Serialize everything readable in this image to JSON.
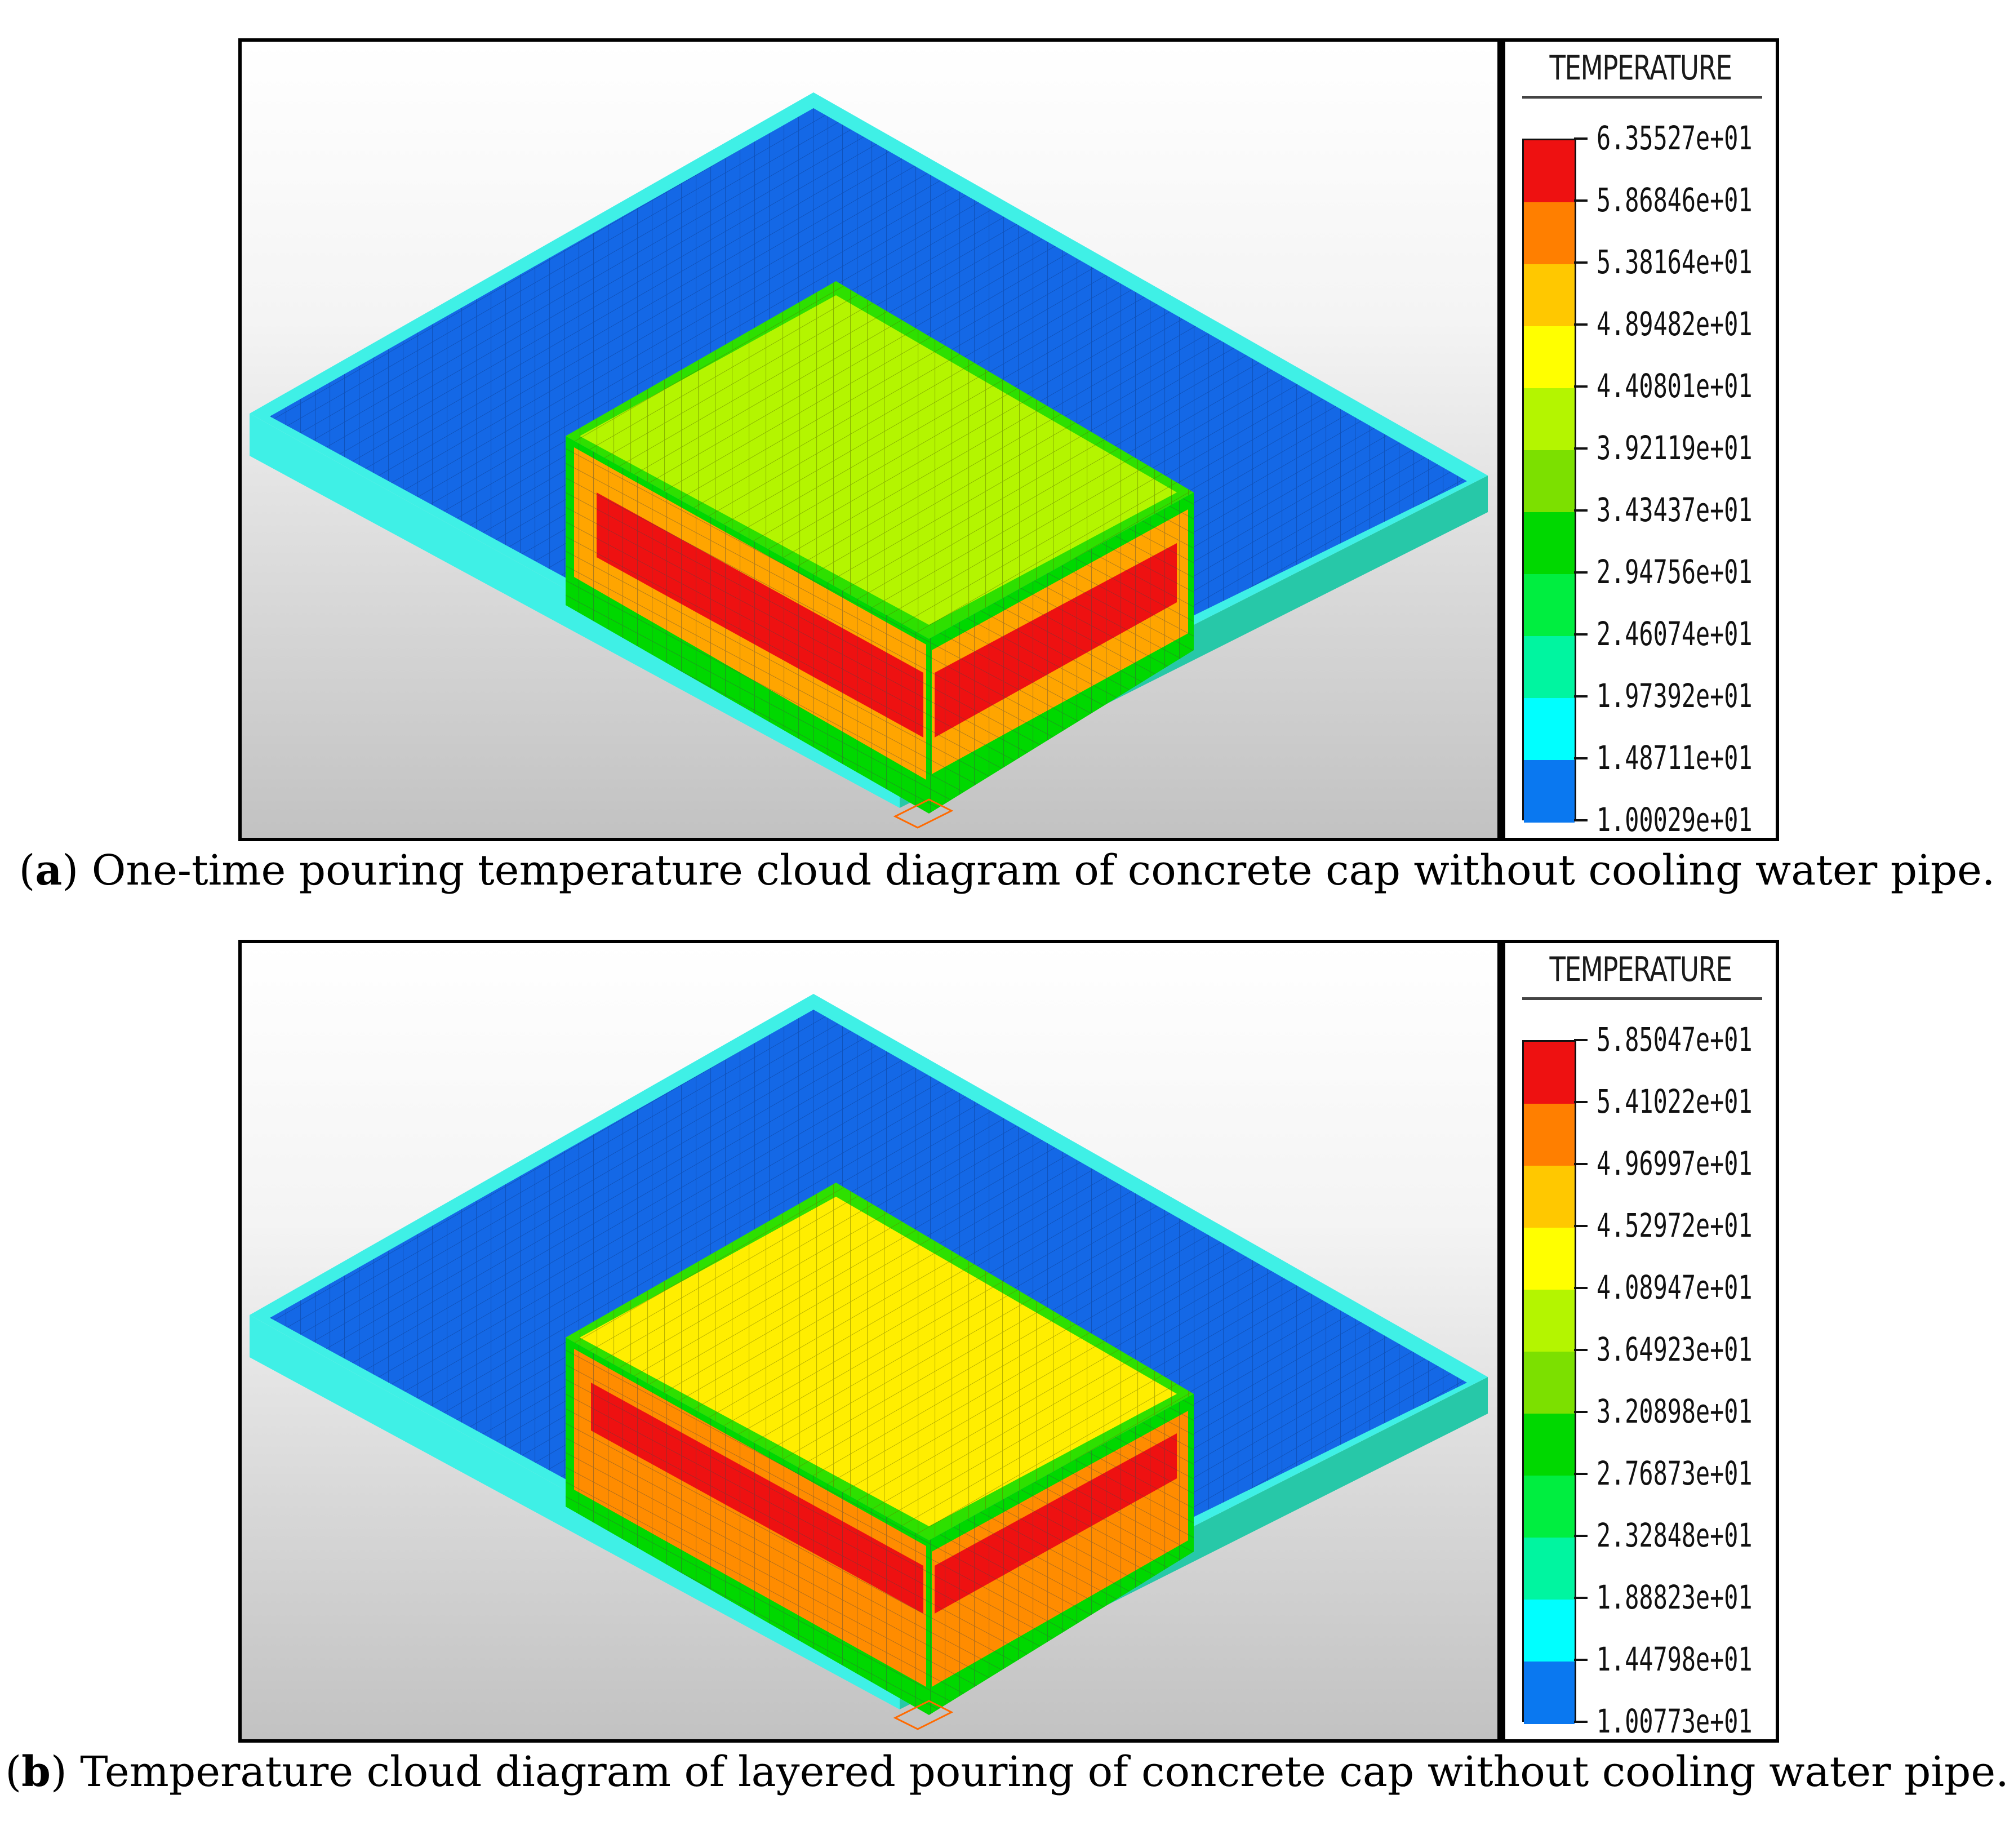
{
  "panels": [
    {
      "legend_title": "TEMPERATURE",
      "legend_values": [
        "6.35527e+01",
        "5.86846e+01",
        "5.38164e+01",
        "4.89482e+01",
        "4.40801e+01",
        "3.92119e+01",
        "3.43437e+01",
        "2.94756e+01",
        "2.46074e+01",
        "1.97392e+01",
        "1.48711e+01",
        "1.00029e+01"
      ],
      "caption_open": "(",
      "caption_tag": "a",
      "caption_text": ") One-time pouring temperature cloud diagram of concrete cap without cooling water pipe."
    },
    {
      "legend_title": "TEMPERATURE",
      "legend_values": [
        "5.85047e+01",
        "5.41022e+01",
        "4.96997e+01",
        "4.52972e+01",
        "4.08947e+01",
        "3.64923e+01",
        "3.20898e+01",
        "2.76873e+01",
        "2.32848e+01",
        "1.88823e+01",
        "1.44798e+01",
        "1.00773e+01"
      ],
      "caption_open": "(",
      "caption_tag": "b",
      "caption_text": ") Temperature cloud diagram of layered pouring of concrete cap without cooling water pipe."
    }
  ],
  "legend_colors": [
    "#ee1111",
    "#ff7f00",
    "#ffc800",
    "#ffff00",
    "#b4f500",
    "#7ce000",
    "#00d800",
    "#00ee40",
    "#00f5a0",
    "#00ffff",
    "#0a78f0"
  ]
}
